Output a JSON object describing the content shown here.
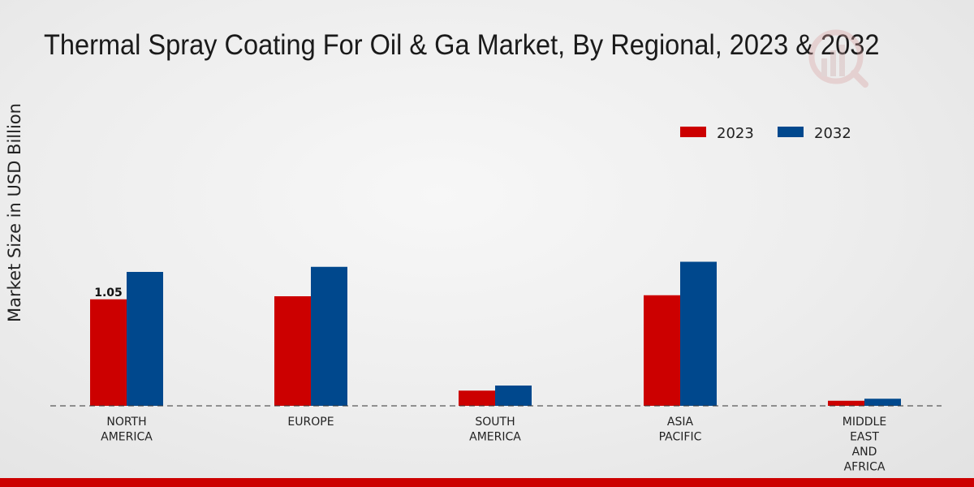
{
  "chart_data": {
    "type": "bar",
    "title": "Thermal Spray Coating For Oil & Ga Market, By Regional, 2023 & 2032",
    "ylabel": "Market Size in USD Billion",
    "xlabel": "",
    "categories": [
      [
        "NORTH",
        "AMERICA"
      ],
      [
        "EUROPE"
      ],
      [
        "SOUTH",
        "AMERICA"
      ],
      [
        "ASIA",
        "PACIFIC"
      ],
      [
        "MIDDLE",
        "EAST",
        "AND",
        "AFRICA"
      ]
    ],
    "series": [
      {
        "name": "2023",
        "color": "#cc0000",
        "values": [
          1.05,
          1.08,
          0.15,
          1.09,
          0.05
        ]
      },
      {
        "name": "2032",
        "color": "#00488d",
        "values": [
          1.32,
          1.37,
          0.2,
          1.42,
          0.07
        ]
      }
    ],
    "data_labels": [
      {
        "series": 0,
        "category": 0,
        "text": "1.05"
      }
    ],
    "ylim": [
      0,
      3.2
    ],
    "grid": false,
    "legend_position": "top-right"
  },
  "brand_icon": "watermark-logo-icon"
}
